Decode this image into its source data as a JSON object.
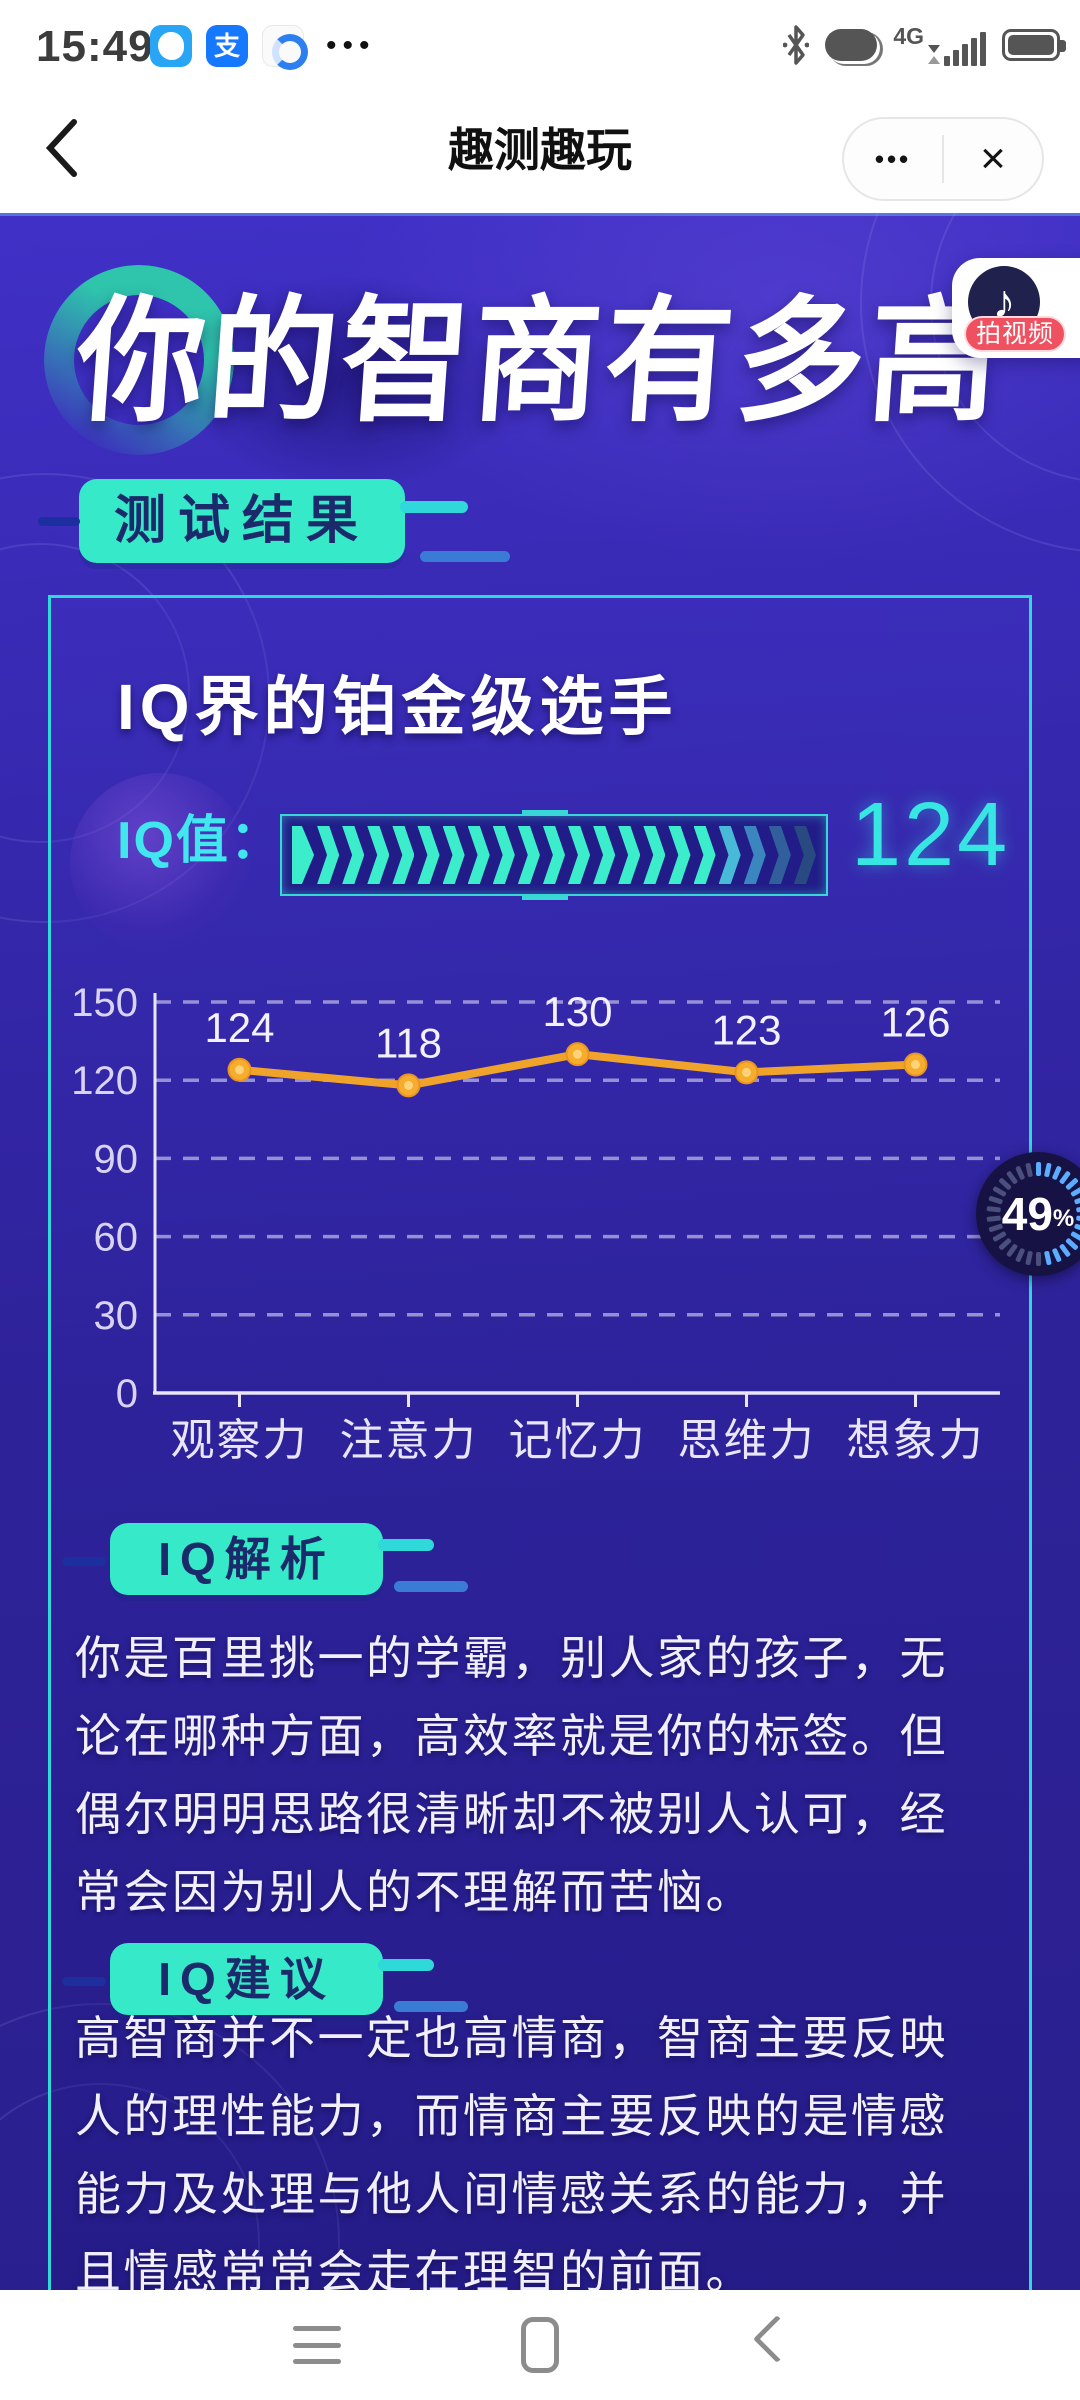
{
  "status_bar": {
    "time": "15:49",
    "more_dots": "•••",
    "network_label": "4G",
    "app_icons": [
      {
        "name": "messenger-app-icon"
      },
      {
        "name": "alipay-app-icon",
        "glyph": "支"
      },
      {
        "name": "browser-app-icon"
      }
    ]
  },
  "nav_bar": {
    "title": "趣测趣玩",
    "more_label": "•••",
    "close_label": "×"
  },
  "hero": {
    "title": "你的智商有多高",
    "video_badge": "拍视频",
    "tiktok_glyph": "♪"
  },
  "result_badge": {
    "label": "测试结果"
  },
  "card": {
    "headline": "IQ界的铂金级选手",
    "iq_label": "IQ值：",
    "iq_value": "124",
    "progress": {
      "total_segments": 21,
      "bright_segments": 17
    }
  },
  "chart_data": {
    "type": "line",
    "categories": [
      "观察力",
      "注意力",
      "记忆力",
      "思维力",
      "想象力"
    ],
    "values": [
      124,
      118,
      130,
      123,
      126
    ],
    "yticks": [
      0,
      30,
      60,
      90,
      120,
      150
    ],
    "ylim": [
      0,
      150
    ],
    "grid": "dashed-horizontal",
    "legend": "none",
    "title": "",
    "xlabel": "",
    "ylabel": "",
    "line_color": "#f0a32b",
    "point_color": "#f6ac2d",
    "label_color": "#f3f0ff"
  },
  "floating_progress": {
    "percent": "49",
    "unit": "%",
    "value": 49,
    "total_dashes": 30
  },
  "analysis": {
    "badge_label": "IQ解析",
    "text": "你是百里挑一的学霸，别人家的孩子，无\n论在哪种方面，高效率就是你的标签。但\n偶尔明明思路很清晰却不被别人认可，经\n常会因为别人的不理解而苦恼。"
  },
  "advice": {
    "badge_label": "IQ建议",
    "text": "高智商并不一定也高情商，智商主要反映\n人的理性能力，而情商主要反映的是情感\n能力及处理与他人间情感关系的能力，并\n且情感常常会走在理智的前面。"
  },
  "colors": {
    "accent_teal": "#35e9c9",
    "badge_text": "#1b2a6b",
    "cyan_value": "#37e6e2",
    "card_border": "#2fd9d9",
    "bg_top": "#4030c6",
    "bg_bottom": "#2a1f8e",
    "line_gold": "#f0a32b",
    "video_red": "#ef5160",
    "progress_bright": "#3bedcb",
    "progress_fade": [
      "#49b9d8",
      "#3c86bf",
      "#305f9b",
      "#294a80"
    ],
    "ring_bright": "#5badff",
    "ring_dim": "#4b4f7c"
  }
}
